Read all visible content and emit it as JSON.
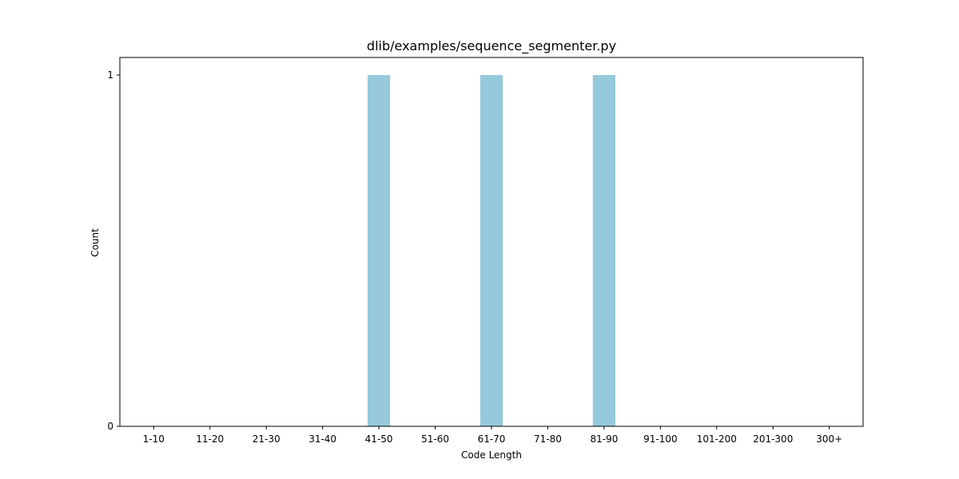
{
  "chart_data": {
    "type": "bar",
    "title": "dlib/examples/sequence_segmenter.py",
    "xlabel": "Code Length",
    "ylabel": "Count",
    "categories": [
      "1-10",
      "11-20",
      "21-30",
      "31-40",
      "41-50",
      "51-60",
      "61-70",
      "71-80",
      "81-90",
      "91-100",
      "101-200",
      "201-300",
      "300+"
    ],
    "values": [
      0,
      0,
      0,
      0,
      1,
      0,
      1,
      0,
      1,
      0,
      0,
      0,
      0
    ],
    "ylim": [
      0,
      1.05
    ],
    "yticks": [
      0,
      1
    ],
    "bar_color": "#96c9dc",
    "grid": false,
    "legend": "none"
  }
}
